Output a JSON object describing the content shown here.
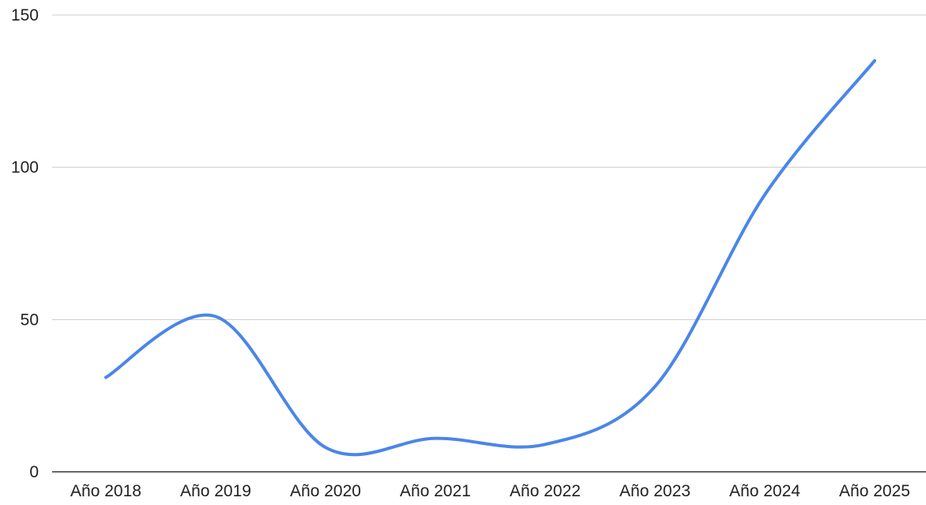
{
  "chart_data": {
    "type": "line",
    "title": "",
    "xlabel": "",
    "ylabel": "",
    "categories": [
      "Año 2018",
      "Año 2019",
      "Año 2020",
      "Año 2021",
      "Año 2022",
      "Año 2023",
      "Año 2024",
      "Año 2025"
    ],
    "series": [
      {
        "values": [
          31,
          51,
          8,
          11,
          9,
          28,
          91,
          135
        ]
      }
    ],
    "ylim": [
      0,
      150
    ],
    "yticks": [
      0,
      50,
      100,
      150
    ],
    "smooth": true,
    "grid": true,
    "legend": "none",
    "colors": {
      "line": "#4A86E8",
      "gridline": "#cccccc",
      "baseline": "#333333",
      "text": "#222222"
    }
  }
}
